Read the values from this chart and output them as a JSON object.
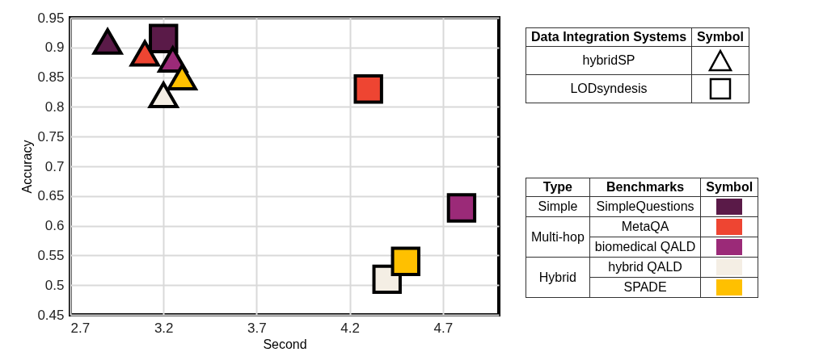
{
  "chart_data": {
    "type": "scatter",
    "xlabel": "Second",
    "ylabel": "Accuracy",
    "xlim": [
      2.7,
      5.0
    ],
    "xticks": [
      2.7,
      3.2,
      3.7,
      4.2,
      4.7
    ],
    "ylim": [
      0.45,
      0.95
    ],
    "yticks": [
      0.45,
      0.5,
      0.55,
      0.6,
      0.65,
      0.7,
      0.75,
      0.8,
      0.85,
      0.9,
      0.95
    ],
    "grid": true,
    "legend": "right",
    "legend_title": "Data Integration Systems",
    "series": [
      {
        "name": "hybridSP",
        "marker": "triangle",
        "colors": [
          "#5a1a48",
          "#ee4532",
          "#9b2a78",
          "#f4eee4",
          "#ffc000"
        ],
        "x": [
          2.9,
          3.1,
          3.25,
          3.2,
          3.3
        ],
        "values": [
          0.91,
          0.89,
          0.88,
          0.82,
          0.85
        ]
      },
      {
        "name": "LODsyndesis",
        "marker": "square",
        "colors": [
          "#5a1a48",
          "#ee4532",
          "#9b2a78",
          "#f4eee4",
          "#ffc000"
        ],
        "x": [
          3.2,
          4.3,
          4.8,
          4.4,
          4.5
        ],
        "values": [
          0.915,
          0.83,
          0.63,
          0.51,
          0.54
        ]
      }
    ],
    "annotations": [
      "Symbol",
      "Type",
      "Benchmarks",
      "Symbol",
      "Simple",
      "Multi-hop",
      "Hybrid",
      "SimpleQuestions",
      "MetaQA",
      "biomedical QALD",
      "hybrid QALD",
      "SPADE"
    ]
  }
}
